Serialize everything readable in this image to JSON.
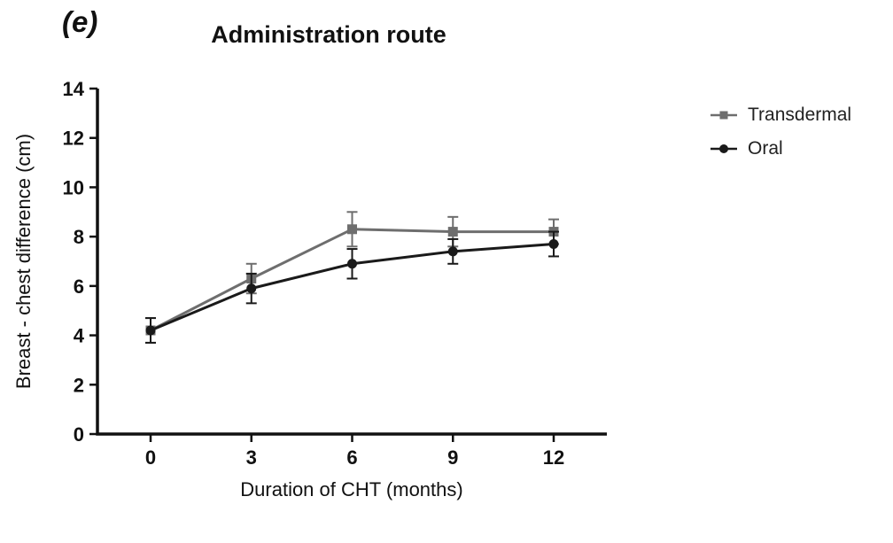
{
  "chart_data": {
    "type": "line",
    "panel_label": "(e)",
    "title": "Administration route",
    "xlabel": "Duration of CHT (months)",
    "ylabel": "Breast - chest difference (cm)",
    "x": [
      0,
      3,
      6,
      9,
      12
    ],
    "xticks": [
      0,
      3,
      6,
      9,
      12
    ],
    "yticks": [
      0,
      2,
      4,
      6,
      8,
      10,
      12,
      14
    ],
    "xlim": [
      0,
      12
    ],
    "ylim": [
      0,
      14
    ],
    "grid": false,
    "legend_position": "right",
    "error_bars": true,
    "series": [
      {
        "name": "Transdermal",
        "marker": "square",
        "color": "#6e6e6e",
        "values": [
          4.2,
          6.3,
          8.3,
          8.2,
          8.2
        ],
        "errors": [
          0.5,
          0.6,
          0.7,
          0.6,
          0.5
        ]
      },
      {
        "name": "Oral",
        "marker": "circle",
        "color": "#1a1a1a",
        "values": [
          4.2,
          5.9,
          6.9,
          7.4,
          7.7
        ],
        "errors": [
          0.5,
          0.6,
          0.6,
          0.5,
          0.5
        ]
      }
    ]
  }
}
